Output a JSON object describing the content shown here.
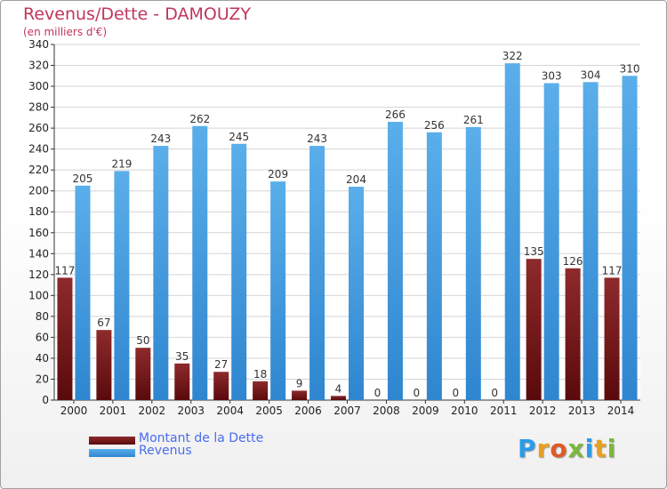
{
  "title": "Revenus/Dette - DAMOUZY",
  "subtitle": "(en milliers d'€)",
  "legend": {
    "dette_label": "Montant de la Dette",
    "revenus_label": "Revenus"
  },
  "colors": {
    "dette": "#7a1518",
    "revenus": "#4aa0e4",
    "title": "#c0365a",
    "legend_text": "#4a6cf0"
  },
  "logo": {
    "text": "Proxiti",
    "letters": [
      "P",
      "r",
      "o",
      "x",
      "i",
      "t",
      "i"
    ],
    "letter_colors": [
      "#2c9be8",
      "#e8a020",
      "#e05a2a",
      "#7ab83a",
      "#2c9be8",
      "#e8a020",
      "#7ab83a"
    ]
  },
  "chart_data": {
    "type": "bar",
    "title": "Revenus/Dette - DAMOUZY",
    "subtitle": "(en milliers d'€)",
    "xlabel": "",
    "ylabel": "",
    "ylim": [
      0,
      340
    ],
    "yticks": [
      0,
      20,
      40,
      60,
      80,
      100,
      120,
      140,
      160,
      180,
      200,
      220,
      240,
      260,
      280,
      300,
      320,
      340
    ],
    "grid": true,
    "legend_position": "bottom-left",
    "categories": [
      "2000",
      "2001",
      "2002",
      "2003",
      "2004",
      "2005",
      "2006",
      "2007",
      "2008",
      "2009",
      "2010",
      "2011",
      "2012",
      "2013",
      "2014"
    ],
    "series": [
      {
        "name": "Montant de la Dette",
        "values": [
          117,
          67,
          50,
          35,
          27,
          18,
          9,
          4,
          0,
          0,
          0,
          0,
          135,
          126,
          117
        ]
      },
      {
        "name": "Revenus",
        "values": [
          205,
          219,
          243,
          262,
          245,
          209,
          243,
          204,
          266,
          256,
          261,
          322,
          303,
          304,
          310
        ]
      }
    ]
  }
}
